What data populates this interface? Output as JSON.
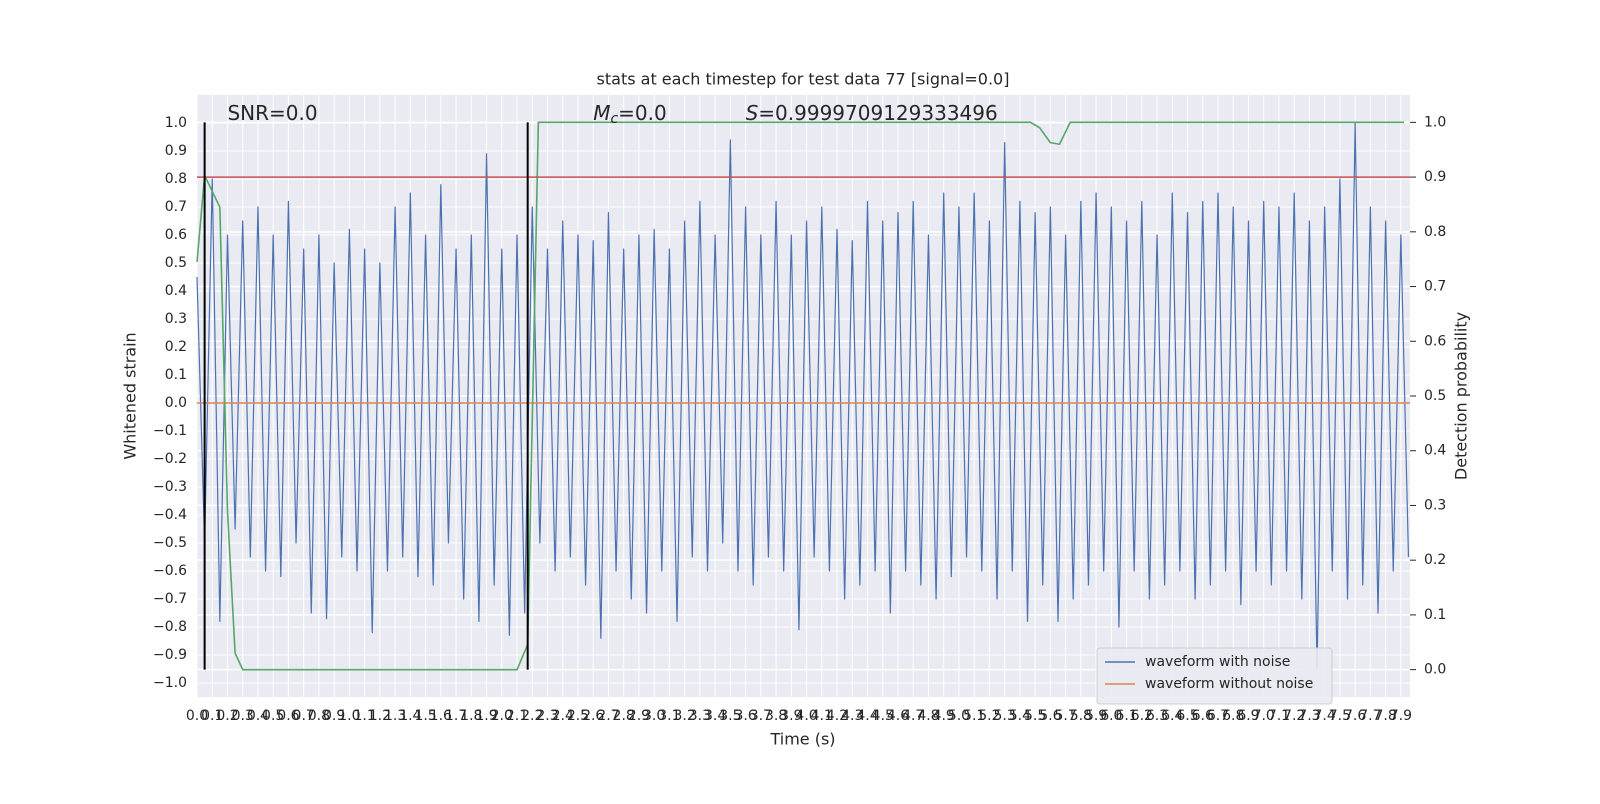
{
  "chart_data": {
    "type": "line",
    "title": "stats at each timestep for test data 77 [signal=0.0]",
    "xlabel": "Time (s)",
    "ylabel": "Whitened strain",
    "y2label": "Detection probability",
    "annotations": [
      {
        "text": "SNR=0.0",
        "x": 0.2
      },
      {
        "italic": "M",
        "sub": "c",
        "text": "=0.0",
        "x": 2.6
      },
      {
        "italic": "S",
        "text": "=0.9999709129333496",
        "x": 3.6
      }
    ],
    "xlim": [
      0,
      7.96
    ],
    "ylim": [
      -1.05,
      1.1
    ],
    "y2lim": [
      -0.05,
      1.05
    ],
    "xticks": [
      {
        "value": 0,
        "label": "0.0"
      },
      0.1,
      0.2,
      0.3,
      0.4,
      0.5,
      0.6,
      0.7,
      0.8,
      0.9,
      {
        "value": 1,
        "label": "1.0"
      },
      1.1,
      1.2,
      1.3,
      1.4,
      1.5,
      1.6,
      1.7,
      1.8,
      1.9,
      {
        "value": 2,
        "label": "2.0"
      },
      2.1,
      2.2,
      2.3,
      2.4,
      2.5,
      2.6,
      2.7,
      2.8,
      2.9,
      {
        "value": 3,
        "label": "3.0"
      },
      3.1,
      3.2,
      3.3,
      3.4,
      3.5,
      3.6,
      3.7,
      3.8,
      3.9,
      {
        "value": 4,
        "label": "4.0"
      },
      4.1,
      4.2,
      4.3,
      4.4,
      4.5,
      4.6,
      4.7,
      4.8,
      4.9,
      {
        "value": 5,
        "label": "5.0"
      },
      5.1,
      5.2,
      5.3,
      5.4,
      5.5,
      5.6,
      5.7,
      5.8,
      5.9,
      {
        "value": 6,
        "label": "6.0"
      },
      6.1,
      6.2,
      6.3,
      6.4,
      6.5,
      6.6,
      6.7,
      6.8,
      6.9,
      {
        "value": 7,
        "label": "7.0"
      },
      7.1,
      7.2,
      7.3,
      7.4,
      7.5,
      7.6,
      7.7,
      7.8,
      7.9
    ],
    "yticks": [
      {
        "value": -1,
        "label": "−1.0"
      },
      {
        "value": -0.9,
        "label": "−0.9"
      },
      {
        "value": -0.8,
        "label": "−0.8"
      },
      {
        "value": -0.7,
        "label": "−0.7"
      },
      {
        "value": -0.6,
        "label": "−0.6"
      },
      {
        "value": -0.5,
        "label": "−0.5"
      },
      {
        "value": -0.4,
        "label": "−0.4"
      },
      {
        "value": -0.3,
        "label": "−0.3"
      },
      {
        "value": -0.2,
        "label": "−0.2"
      },
      {
        "value": -0.1,
        "label": "−0.1"
      },
      {
        "value": 0,
        "label": "0.0"
      },
      0.1,
      0.2,
      0.3,
      0.4,
      0.5,
      0.6,
      0.7,
      0.8,
      0.9,
      {
        "value": 1,
        "label": "1.0"
      }
    ],
    "y2ticks": [
      {
        "value": 0,
        "label": "0.0"
      },
      0.1,
      0.2,
      0.3,
      0.4,
      0.5,
      0.6,
      0.7,
      0.8,
      0.9,
      {
        "value": 1,
        "label": "1.0"
      }
    ],
    "grid": true,
    "legend": "lower right",
    "threshold": {
      "value": 0.9,
      "axis": "y2",
      "color": "#c44e52"
    },
    "vlines": {
      "x": [
        0.05,
        2.17
      ],
      "from": 0,
      "to": 1,
      "axis": "y2",
      "color": "#000000"
    },
    "series": [
      {
        "name": "waveform with noise",
        "color": "#4c72b0",
        "x": [
          0,
          0.05,
          0.1,
          0.15,
          0.2,
          0.25,
          0.3,
          0.35,
          0.4,
          0.45,
          0.5,
          0.55,
          0.6,
          0.65,
          0.7,
          0.75,
          0.8,
          0.85,
          0.9,
          0.95,
          1,
          1.05,
          1.1,
          1.15,
          1.2,
          1.25,
          1.3,
          1.35,
          1.4,
          1.45,
          1.5,
          1.55,
          1.6,
          1.65,
          1.7,
          1.75,
          1.8,
          1.85,
          1.9,
          1.95,
          2,
          2.05,
          2.1,
          2.15,
          2.2,
          2.25,
          2.3,
          2.35,
          2.4,
          2.45,
          2.5,
          2.55,
          2.6,
          2.65,
          2.7,
          2.75,
          2.8,
          2.85,
          2.9,
          2.95,
          3,
          3.05,
          3.1,
          3.15,
          3.2,
          3.25,
          3.3,
          3.35,
          3.4,
          3.45,
          3.5,
          3.55,
          3.6,
          3.65,
          3.7,
          3.75,
          3.8,
          3.85,
          3.9,
          3.95,
          4,
          4.05,
          4.1,
          4.15,
          4.2,
          4.25,
          4.3,
          4.35,
          4.4,
          4.45,
          4.5,
          4.55,
          4.6,
          4.65,
          4.7,
          4.75,
          4.8,
          4.85,
          4.9,
          4.95,
          5,
          5.05,
          5.1,
          5.15,
          5.2,
          5.25,
          5.3,
          5.35,
          5.4,
          5.45,
          5.5,
          5.55,
          5.6,
          5.65,
          5.7,
          5.75,
          5.8,
          5.85,
          5.9,
          5.95,
          6,
          6.05,
          6.1,
          6.15,
          6.2,
          6.25,
          6.3,
          6.35,
          6.4,
          6.45,
          6.5,
          6.55,
          6.6,
          6.65,
          6.7,
          6.75,
          6.8,
          6.85,
          6.9,
          6.95,
          7,
          7.05,
          7.1,
          7.15,
          7.2,
          7.25,
          7.3,
          7.35,
          7.4,
          7.45,
          7.5,
          7.55,
          7.6,
          7.65,
          7.7,
          7.75,
          7.8,
          7.85,
          7.9,
          7.95
        ],
        "values": [
          0.45,
          -0.5,
          0.8,
          -0.78,
          0.6,
          -0.45,
          0.65,
          -0.55,
          0.7,
          -0.6,
          0.6,
          -0.62,
          0.72,
          -0.5,
          0.55,
          -0.75,
          0.6,
          -0.77,
          0.5,
          -0.55,
          0.62,
          -0.6,
          0.55,
          -0.82,
          0.5,
          -0.6,
          0.7,
          -0.55,
          0.75,
          -0.62,
          0.6,
          -0.65,
          0.78,
          -0.5,
          0.55,
          -0.7,
          0.6,
          -0.78,
          0.89,
          -0.65,
          0.55,
          -0.83,
          0.6,
          -0.75,
          0.7,
          -0.5,
          0.55,
          -0.6,
          0.65,
          -0.55,
          0.6,
          -0.65,
          0.58,
          -0.84,
          0.68,
          -0.6,
          0.55,
          -0.7,
          0.6,
          -0.75,
          0.62,
          -0.6,
          0.55,
          -0.78,
          0.65,
          -0.55,
          0.72,
          -0.6,
          0.6,
          -0.5,
          0.94,
          -0.6,
          0.7,
          -0.65,
          0.6,
          -0.55,
          0.72,
          -0.6,
          0.6,
          -0.81,
          0.65,
          -0.55,
          0.7,
          -0.6,
          0.62,
          -0.7,
          0.58,
          -0.65,
          0.72,
          -0.6,
          0.65,
          -0.75,
          0.68,
          -0.6,
          0.72,
          -0.65,
          0.6,
          -0.7,
          0.75,
          -0.62,
          0.7,
          -0.55,
          0.75,
          -0.6,
          0.65,
          -0.7,
          0.93,
          -0.6,
          0.72,
          -0.78,
          0.68,
          -0.65,
          0.7,
          -0.78,
          0.6,
          -0.7,
          0.72,
          -0.65,
          0.75,
          -0.6,
          0.7,
          -0.8,
          0.65,
          -0.6,
          0.72,
          -0.7,
          0.6,
          -0.65,
          0.75,
          -0.6,
          0.68,
          -0.7,
          0.72,
          -0.65,
          0.75,
          -0.6,
          0.7,
          -0.72,
          0.65,
          -0.6,
          0.72,
          -0.65,
          0.7,
          -0.6,
          0.75,
          -0.7,
          0.65,
          -0.95,
          0.7,
          -0.6,
          0.8,
          -0.7,
          1.0,
          -0.65,
          0.7,
          -0.75,
          0.65,
          -0.6,
          0.6,
          -0.55
        ]
      },
      {
        "name": "waveform without noise",
        "color": "#dd8452",
        "x": [
          0,
          7.96
        ],
        "values": [
          0,
          0
        ]
      },
      {
        "color": "#55a868",
        "axis": "y2",
        "x": [
          0,
          0.05,
          0.15,
          0.2,
          0.25,
          0.3,
          2.1,
          2.17,
          2.24,
          5.47,
          5.53,
          5.6,
          5.66,
          5.73,
          7.92
        ],
        "values": [
          0.745,
          0.903,
          0.845,
          0.29,
          0.03,
          0,
          0,
          0.046,
          1,
          1,
          0.99,
          0.963,
          0.96,
          1,
          1
        ]
      }
    ]
  }
}
